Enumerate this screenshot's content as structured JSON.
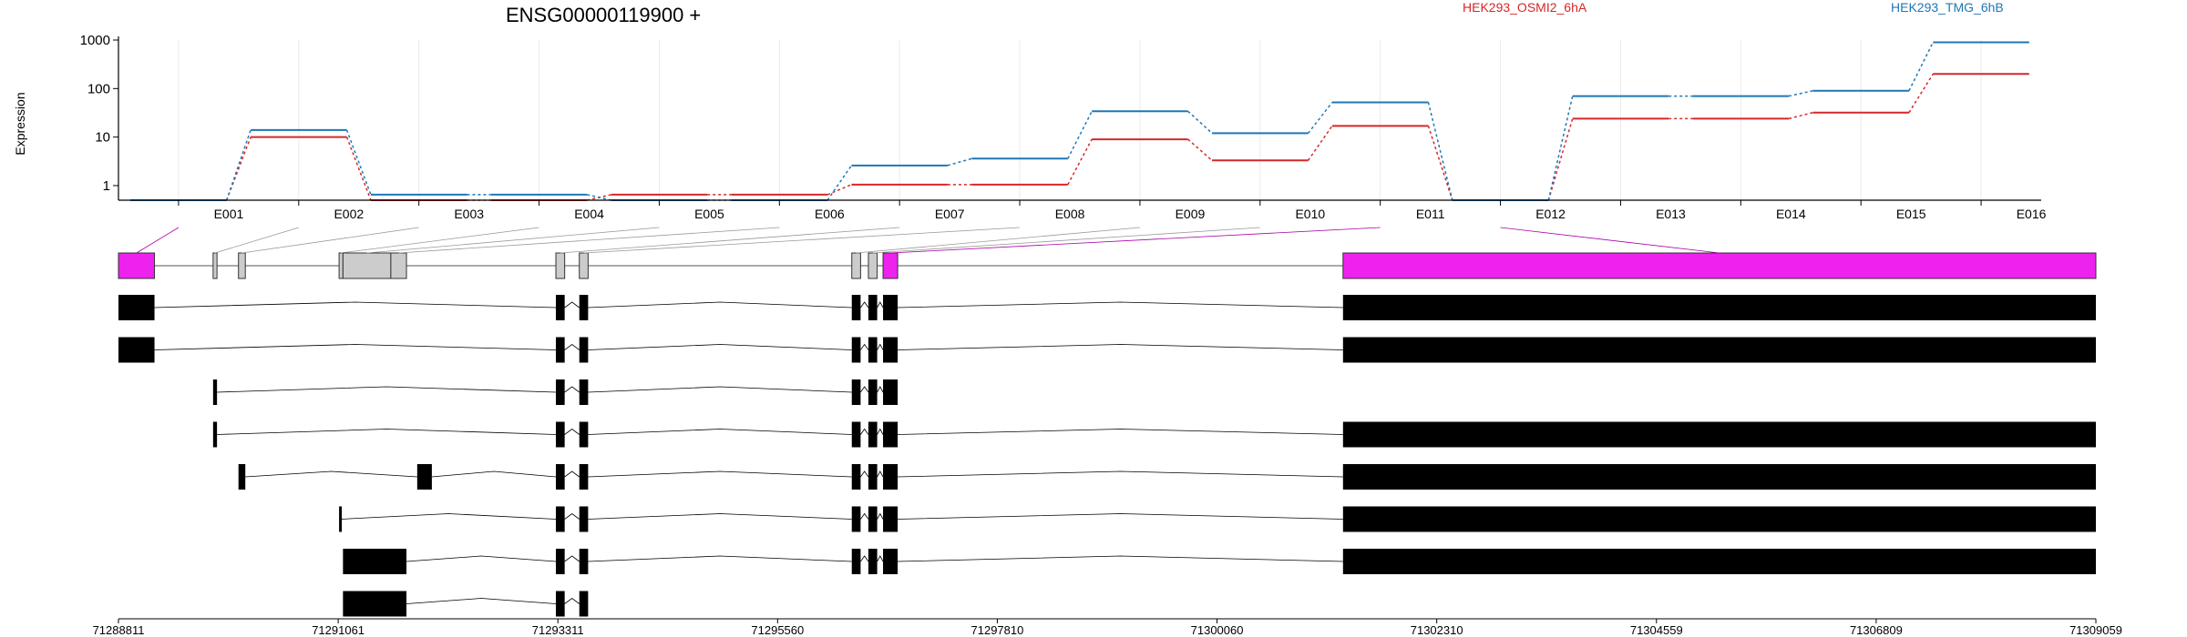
{
  "chart_data": {
    "type": "line",
    "title": "ENSG00000119900 +",
    "ylabel": "Expression",
    "xlabel": "",
    "y_scale": "log",
    "ylim": [
      0.5,
      1000
    ],
    "y_ticks": [
      1,
      10,
      100,
      1000
    ],
    "y_tick_labels": [
      "1",
      "10",
      "100",
      "1000"
    ],
    "x_tick_labels": [
      "E001",
      "E002",
      "E003",
      "E004",
      "E005",
      "E006",
      "E007",
      "E008",
      "E009",
      "E010",
      "E011",
      "E012",
      "E013",
      "E014",
      "E015",
      "E016"
    ],
    "grid": true,
    "legend_placement": "top",
    "series": [
      {
        "name": "HEK293_OSMI2_6hA",
        "color": "#d62728",
        "values": [
          0.5,
          10,
          0.5,
          0.5,
          0.65,
          0.65,
          1.05,
          1.05,
          9,
          3.3,
          17,
          0.5,
          24,
          24,
          32,
          200
        ]
      },
      {
        "name": "HEK293_TMG_6hB",
        "color": "#1f77b4",
        "values": [
          0.5,
          14,
          0.65,
          0.65,
          0.5,
          0.5,
          2.6,
          3.6,
          34,
          12,
          52,
          0.5,
          70,
          70,
          90,
          900
        ]
      }
    ],
    "genomic_axis": {
      "range": [
        71288811,
        71309059
      ],
      "tick_labels": [
        "71288811",
        "71291061",
        "71293311",
        "71295560",
        "71297810",
        "71300060",
        "71302310",
        "71304559",
        "71306809",
        "71309059"
      ]
    },
    "gene_model": {
      "exons": [
        {
          "id": "E001",
          "start": 71288811,
          "end": 71289180,
          "highlight": true
        },
        {
          "id": "E002",
          "start": 71289780,
          "end": 71289820,
          "highlight": false
        },
        {
          "id": "E003",
          "start": 71290040,
          "end": 71290110,
          "highlight": false
        },
        {
          "id": "E004",
          "start": 71291070,
          "end": 71291110,
          "highlight": false
        },
        {
          "id": "E005",
          "start": 71291110,
          "end": 71291600,
          "highlight": false
        },
        {
          "id": "E006",
          "start": 71291600,
          "end": 71291760,
          "highlight": false
        },
        {
          "id": "E007",
          "start": 71293290,
          "end": 71293380,
          "highlight": false
        },
        {
          "id": "E008",
          "start": 71293530,
          "end": 71293620,
          "highlight": false
        },
        {
          "id": "E009",
          "start": 71296320,
          "end": 71296410,
          "highlight": false
        },
        {
          "id": "E010",
          "start": 71296490,
          "end": 71296580,
          "highlight": false
        },
        {
          "id": "E011",
          "start": 71296640,
          "end": 71296790,
          "highlight": true
        },
        {
          "id": "E016",
          "start": 71301350,
          "end": 71309059,
          "highlight": true
        }
      ],
      "transcripts": [
        [
          [
            71288811,
            71289180
          ],
          [
            71293290,
            71293380
          ],
          [
            71293530,
            71293620
          ],
          [
            71296320,
            71296410
          ],
          [
            71296490,
            71296580
          ],
          [
            71296640,
            71296790
          ],
          [
            71301350,
            71309059
          ]
        ],
        [
          [
            71288811,
            71289180
          ],
          [
            71293290,
            71293380
          ],
          [
            71293530,
            71293620
          ],
          [
            71296320,
            71296410
          ],
          [
            71296490,
            71296580
          ],
          [
            71296640,
            71296790
          ],
          [
            71301350,
            71309059
          ]
        ],
        [
          [
            71289780,
            71289820
          ],
          [
            71293290,
            71293380
          ],
          [
            71293530,
            71293620
          ],
          [
            71296320,
            71296410
          ],
          [
            71296490,
            71296580
          ],
          [
            71296640,
            71296790
          ]
        ],
        [
          [
            71289780,
            71289820
          ],
          [
            71293290,
            71293380
          ],
          [
            71293530,
            71293620
          ],
          [
            71296320,
            71296410
          ],
          [
            71296490,
            71296580
          ],
          [
            71296640,
            71296790
          ],
          [
            71301350,
            71309059
          ]
        ],
        [
          [
            71290040,
            71290110
          ],
          [
            71291870,
            71292020
          ],
          [
            71293290,
            71293380
          ],
          [
            71293530,
            71293620
          ],
          [
            71296320,
            71296410
          ],
          [
            71296490,
            71296580
          ],
          [
            71296640,
            71296790
          ],
          [
            71301350,
            71309059
          ]
        ],
        [
          [
            71291070,
            71291090
          ],
          [
            71293290,
            71293380
          ],
          [
            71293530,
            71293620
          ],
          [
            71296320,
            71296410
          ],
          [
            71296490,
            71296580
          ],
          [
            71296640,
            71296790
          ],
          [
            71301350,
            71309059
          ]
        ],
        [
          [
            71291110,
            71291760
          ],
          [
            71293290,
            71293380
          ],
          [
            71293530,
            71293620
          ],
          [
            71296320,
            71296410
          ],
          [
            71296490,
            71296580
          ],
          [
            71296640,
            71296790
          ],
          [
            71301350,
            71309059
          ]
        ],
        [
          [
            71291110,
            71291760
          ],
          [
            71293290,
            71293380
          ],
          [
            71293530,
            71293620
          ]
        ]
      ]
    }
  }
}
